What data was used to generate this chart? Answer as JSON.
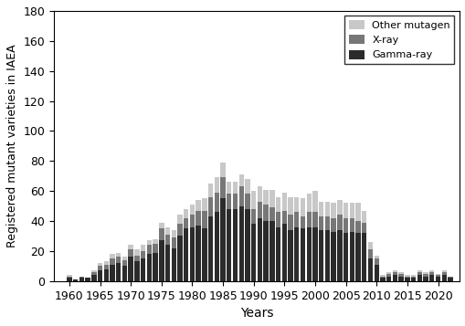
{
  "years": [
    1960,
    1961,
    1962,
    1963,
    1964,
    1965,
    1966,
    1967,
    1968,
    1969,
    1970,
    1971,
    1972,
    1973,
    1974,
    1975,
    1976,
    1977,
    1978,
    1979,
    1980,
    1981,
    1982,
    1983,
    1984,
    1985,
    1986,
    1987,
    1988,
    1989,
    1990,
    1991,
    1992,
    1993,
    1994,
    1995,
    1996,
    1997,
    1998,
    1999,
    2000,
    2001,
    2002,
    2003,
    2004,
    2005,
    2006,
    2007,
    2008,
    2009,
    2010,
    2011,
    2012,
    2013,
    2014,
    2015,
    2016,
    2017,
    2018,
    2019,
    2020,
    2021,
    2022
  ],
  "gamma_ray": [
    2,
    1,
    2,
    2,
    4,
    7,
    8,
    11,
    12,
    10,
    16,
    13,
    15,
    18,
    19,
    27,
    24,
    22,
    30,
    35,
    36,
    37,
    35,
    43,
    46,
    55,
    48,
    48,
    50,
    48,
    38,
    42,
    40,
    40,
    36,
    38,
    34,
    36,
    35,
    36,
    36,
    34,
    34,
    33,
    34,
    32,
    33,
    32,
    32,
    15,
    11,
    2,
    3,
    4,
    3,
    2,
    2,
    4,
    3,
    4,
    3,
    4,
    2
  ],
  "xray": [
    1,
    0,
    1,
    0,
    2,
    3,
    3,
    4,
    4,
    4,
    5,
    4,
    5,
    6,
    6,
    8,
    7,
    7,
    8,
    7,
    8,
    10,
    12,
    13,
    13,
    14,
    10,
    10,
    13,
    10,
    10,
    11,
    11,
    9,
    10,
    9,
    10,
    10,
    8,
    10,
    10,
    9,
    9,
    9,
    10,
    10,
    9,
    8,
    7,
    6,
    4,
    1,
    2,
    2,
    2,
    1,
    1,
    2,
    2,
    2,
    1,
    2,
    1
  ],
  "other": [
    1,
    0,
    0,
    0,
    1,
    2,
    2,
    3,
    3,
    2,
    3,
    4,
    4,
    3,
    3,
    4,
    5,
    5,
    6,
    6,
    7,
    7,
    8,
    9,
    10,
    10,
    8,
    8,
    8,
    10,
    12,
    10,
    10,
    12,
    10,
    12,
    12,
    10,
    12,
    12,
    14,
    10,
    10,
    10,
    10,
    10,
    10,
    12,
    8,
    5,
    2,
    1,
    1,
    1,
    1,
    1,
    1,
    1,
    1,
    1,
    1,
    1,
    0
  ],
  "gamma_color": "#2b2b2b",
  "xray_color": "#777777",
  "other_color": "#c8c8c8",
  "xlabel": "Years",
  "ylabel": "Registered mutant varieties in IAEA",
  "ylim": [
    0,
    180
  ],
  "yticks": [
    0,
    20,
    40,
    60,
    80,
    100,
    120,
    140,
    160,
    180
  ],
  "xticks": [
    1960,
    1965,
    1970,
    1975,
    1980,
    1985,
    1990,
    1995,
    2000,
    2005,
    2010,
    2015,
    2020
  ],
  "bar_width": 0.8
}
